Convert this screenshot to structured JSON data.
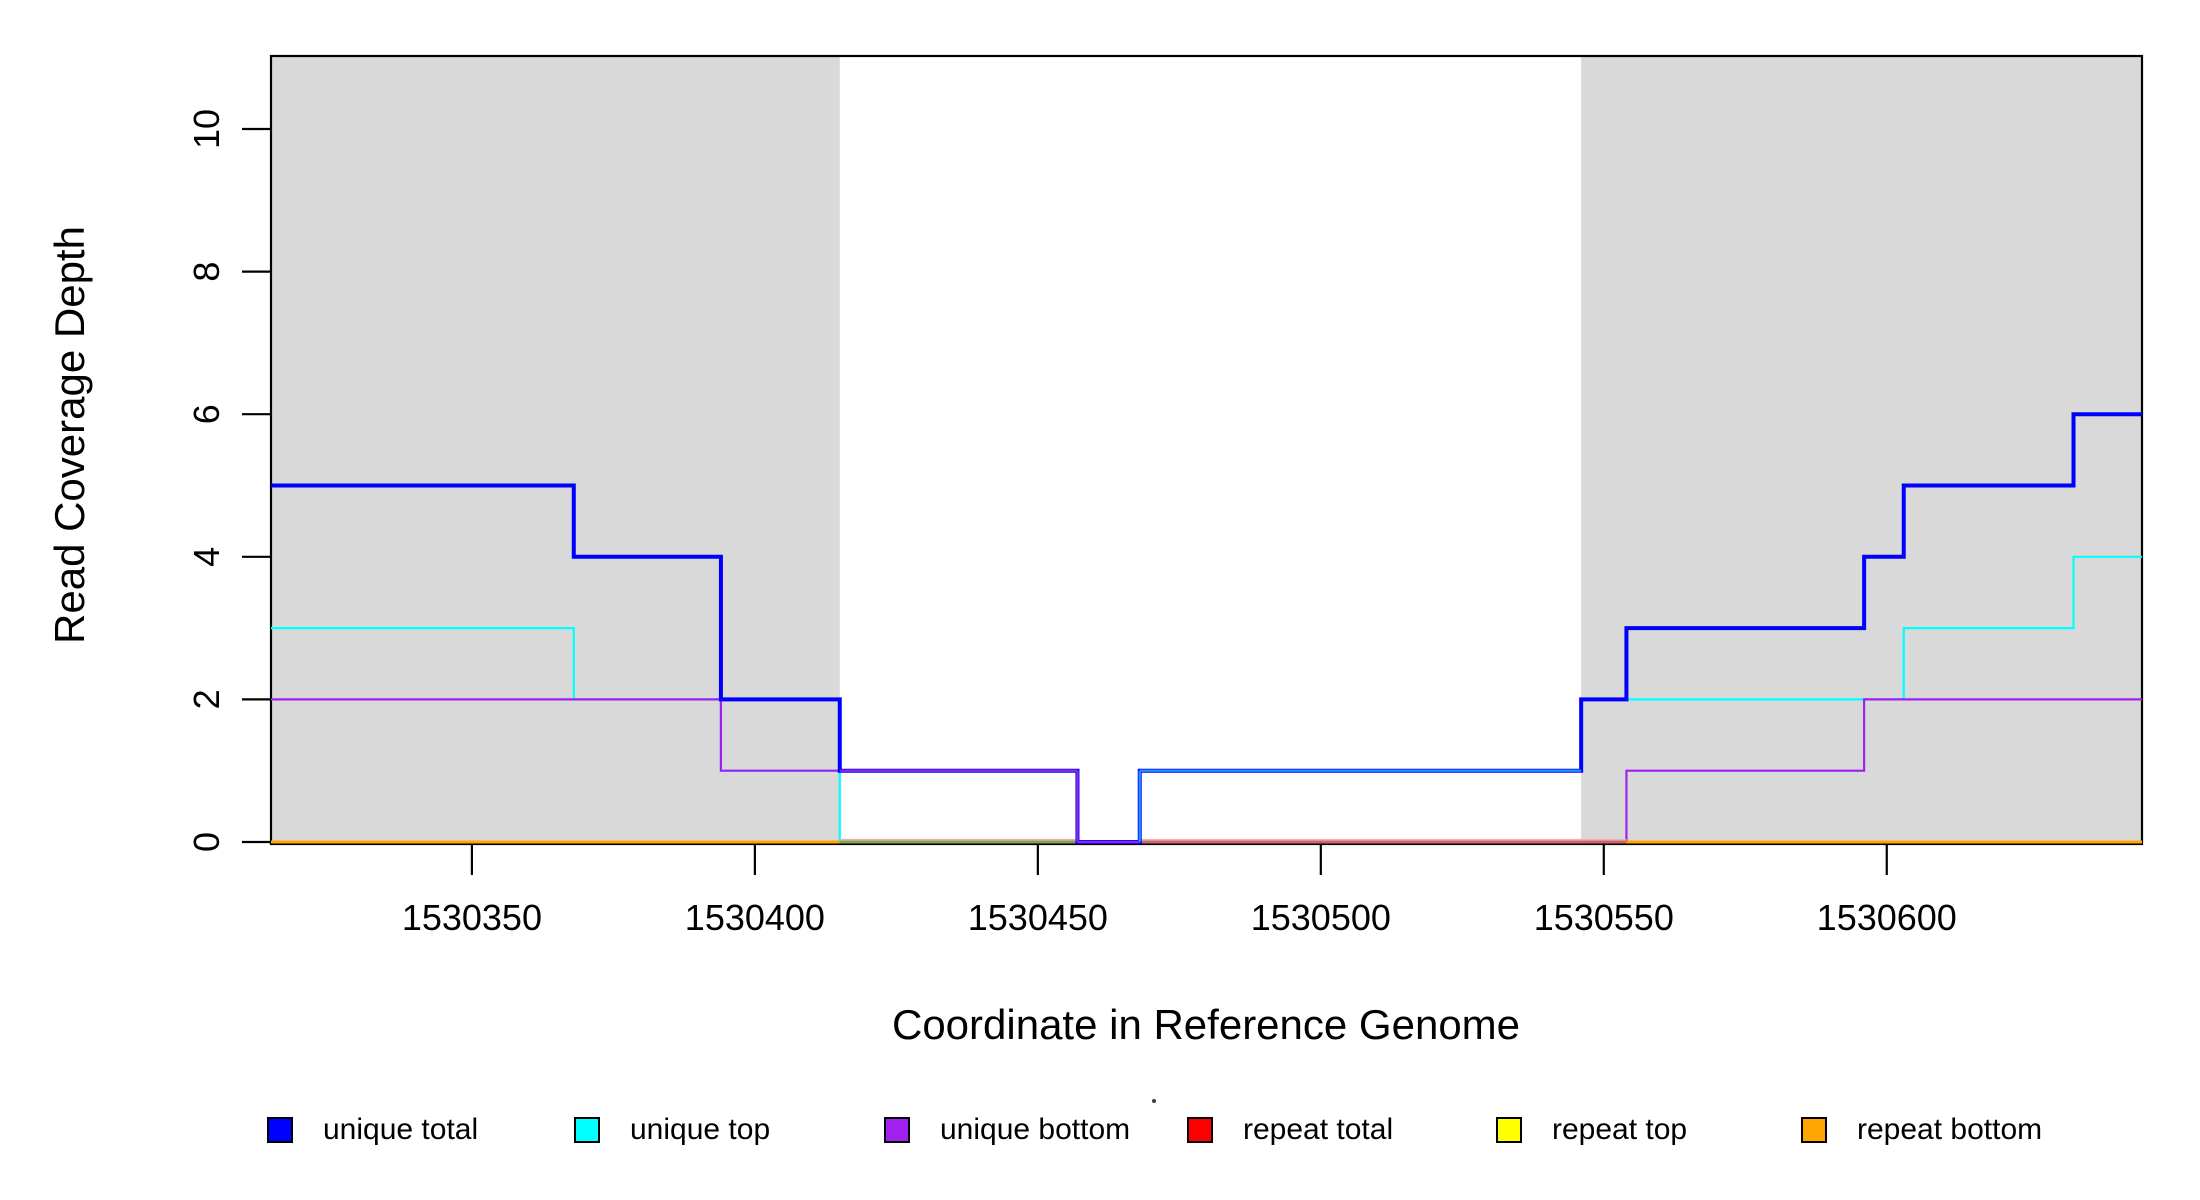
{
  "chart_data": {
    "type": "line",
    "subtype": "step",
    "title": "",
    "xlabel": "Coordinate in Reference Genome",
    "ylabel": "Read Coverage Depth",
    "x_ticks": [
      1530350,
      1530400,
      1530450,
      1530500,
      1530550,
      1530600
    ],
    "y_ticks": [
      0,
      2,
      4,
      6,
      8,
      10
    ],
    "x_range": [
      1530314.5,
      1530645.1
    ],
    "y_range": [
      0,
      11.05
    ],
    "grid": false,
    "legend_position": "bottom",
    "shade_color": "#D9D9D9",
    "shaded_regions": [
      {
        "from": 1530314.5,
        "to": 1530415,
        "meaning": "repeat-region-left"
      },
      {
        "from": 1530546,
        "to": 1530645.1,
        "meaning": "repeat-region-right"
      }
    ],
    "series": [
      {
        "name": "unique total",
        "color": "#0000FF",
        "width": 4,
        "points": [
          [
            1530314.5,
            5
          ],
          [
            1530368,
            4
          ],
          [
            1530394,
            2
          ],
          [
            1530415,
            1
          ],
          [
            1530457,
            0
          ],
          [
            1530468,
            1
          ],
          [
            1530546,
            2
          ],
          [
            1530554,
            3
          ],
          [
            1530596,
            4
          ],
          [
            1530603,
            5
          ],
          [
            1530633,
            6
          ]
        ]
      },
      {
        "name": "unique top",
        "color": "#00FFFF",
        "width": 2.2,
        "points": [
          [
            1530314.5,
            3
          ],
          [
            1530368,
            2
          ],
          [
            1530394,
            1
          ],
          [
            1530415,
            0
          ],
          [
            1530468,
            1
          ],
          [
            1530546,
            2
          ],
          [
            1530603,
            3
          ],
          [
            1530633,
            4
          ]
        ]
      },
      {
        "name": "unique bottom",
        "color": "#A020F0",
        "width": 2.2,
        "points": [
          [
            1530314.5,
            2
          ],
          [
            1530394,
            1
          ],
          [
            1530457,
            0
          ],
          [
            1530554,
            1
          ],
          [
            1530596,
            2
          ]
        ]
      },
      {
        "name": "repeat total",
        "color": "#FF0000",
        "width": 2.2,
        "rendered_as": "baseline-overlay",
        "points": [
          [
            1530314.5,
            0
          ]
        ]
      },
      {
        "name": "repeat top",
        "color": "#FFFF00",
        "width": 2.2,
        "rendered_as": "baseline-overlay",
        "points": [
          [
            1530314.5,
            0
          ]
        ]
      },
      {
        "name": "repeat bottom",
        "color": "#FFA500",
        "width": 3,
        "rendered_as": "baseline-overlay",
        "points": [
          [
            1530314.5,
            0
          ]
        ]
      }
    ],
    "baseline_overlays": [
      {
        "from": 1530314.5,
        "to": 1530415,
        "color": "#FFA500",
        "width": 3
      },
      {
        "from": 1530415,
        "to": 1530457,
        "color": "#7FA254",
        "width": 3,
        "top_color": "#F0ADAD"
      },
      {
        "from": 1530468,
        "to": 1530554,
        "color": "#C9666E",
        "width": 3,
        "top_color": "#F2AEB5"
      },
      {
        "from": 1530554,
        "to": 1530645.1,
        "color": "#FFA500",
        "width": 3
      }
    ],
    "accents": [
      {
        "from": 1530415,
        "to": 1530457,
        "value": 1,
        "color": "#8A2BE2",
        "width": 2.4
      },
      {
        "at": 1530457,
        "v1": 1,
        "v2": 0,
        "color": "#8A2BE2",
        "width": 2.4
      },
      {
        "from": 1530457,
        "to": 1530468,
        "value": 0,
        "color": "#8A2BE2",
        "width": 2.4
      },
      {
        "at": 1530468,
        "v1": 0,
        "v2": 1,
        "color": "#1E90FF",
        "width": 2.4
      },
      {
        "from": 1530468,
        "to": 1530546,
        "value": 1,
        "color": "#1E90FF",
        "width": 2.4
      }
    ],
    "render_order": [
      "unique top",
      "unique bottom",
      "@baseline_overlays",
      "unique total",
      "@accents"
    ]
  },
  "legend": {
    "items": [
      {
        "label": "unique total",
        "color": "#0000FF"
      },
      {
        "label": "unique top",
        "color": "#00FFFF"
      },
      {
        "label": "unique bottom",
        "color": "#A020F0"
      },
      {
        "label": "repeat total",
        "color": "#FF0000"
      },
      {
        "label": "repeat top",
        "color": "#FFFF00"
      },
      {
        "label": "repeat bottom",
        "color": "#FFA500"
      }
    ]
  }
}
